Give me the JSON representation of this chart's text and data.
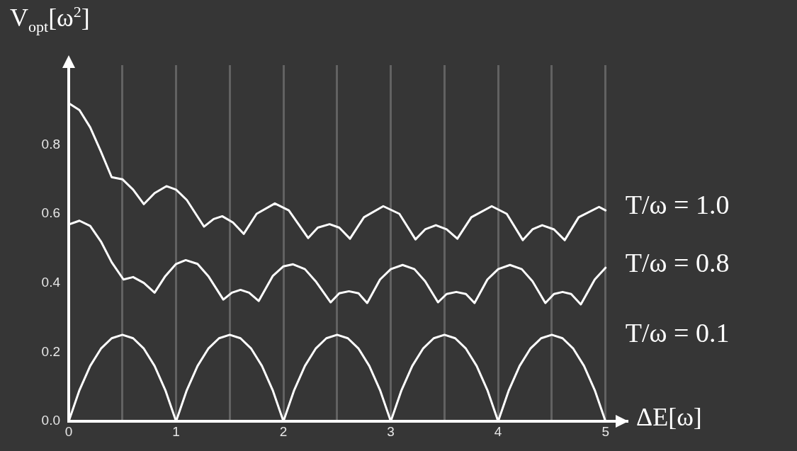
{
  "chart_data": {
    "type": "line",
    "xlabel": "ΔE[ω]",
    "ylabel": "V$_{opt}$[ω$^{2}$]",
    "xlim": [
      0,
      5.2
    ],
    "xticks": [
      0,
      {
        "value": 0.5,
        "label": null
      },
      1,
      {
        "value": 1.5,
        "label": null
      },
      2,
      {
        "value": 2.5,
        "label": null
      },
      3,
      {
        "value": 3.5,
        "label": null
      },
      4,
      {
        "value": 4.5,
        "label": null
      },
      5
    ],
    "ylim": [
      0,
      1.03
    ],
    "yticks": [
      {
        "value": 0,
        "label": "0.0"
      },
      {
        "value": 0.2,
        "label": "0.2"
      },
      {
        "value": 0.4,
        "label": "0.4"
      },
      {
        "value": 0.6,
        "label": "0.6"
      },
      {
        "value": 0.8,
        "label": "0.8"
      }
    ],
    "grid": "x",
    "legend": false,
    "marker": "none",
    "line_style": "solid",
    "series": [
      {
        "name": "T/ω = 1.0",
        "color": "#ffffff",
        "x": [
          0,
          0.1,
          0.2,
          0.3,
          0.4,
          0.5,
          0.6,
          0.7,
          0.8,
          0.91,
          1.0,
          1.1,
          1.26,
          1.35,
          1.43,
          1.53,
          1.63,
          1.75,
          1.92,
          2.05,
          2.23,
          2.32,
          2.43,
          2.52,
          2.62,
          2.75,
          2.93,
          3.08,
          3.23,
          3.32,
          3.42,
          3.52,
          3.62,
          3.75,
          3.94,
          4.08,
          4.23,
          4.32,
          4.41,
          4.52,
          4.62,
          4.75,
          4.94,
          5
        ],
        "values": [
          0.92,
          0.9,
          0.85,
          0.78,
          0.706,
          0.7,
          0.67,
          0.628,
          0.66,
          0.68,
          0.67,
          0.64,
          0.563,
          0.585,
          0.593,
          0.575,
          0.542,
          0.6,
          0.63,
          0.61,
          0.53,
          0.56,
          0.57,
          0.56,
          0.528,
          0.59,
          0.622,
          0.6,
          0.526,
          0.555,
          0.567,
          0.555,
          0.528,
          0.59,
          0.622,
          0.6,
          0.524,
          0.555,
          0.567,
          0.555,
          0.524,
          0.59,
          0.62,
          0.61
        ]
      },
      {
        "name": "T/ω = 0.8",
        "color": "#ffffff",
        "x": [
          0,
          0.1,
          0.2,
          0.3,
          0.4,
          0.51,
          0.6,
          0.7,
          0.8,
          0.9,
          1.0,
          1.09,
          1.2,
          1.3,
          1.44,
          1.52,
          1.6,
          1.68,
          1.77,
          1.9,
          2.0,
          2.09,
          2.2,
          2.3,
          2.44,
          2.52,
          2.61,
          2.7,
          2.78,
          2.9,
          3.0,
          3.11,
          3.22,
          3.32,
          3.44,
          3.52,
          3.61,
          3.7,
          3.78,
          3.9,
          4.0,
          4.11,
          4.22,
          4.32,
          4.44,
          4.52,
          4.6,
          4.68,
          4.77,
          4.9,
          5
        ],
        "values": [
          0.569,
          0.58,
          0.565,
          0.52,
          0.46,
          0.41,
          0.417,
          0.4,
          0.372,
          0.42,
          0.455,
          0.466,
          0.455,
          0.42,
          0.352,
          0.372,
          0.38,
          0.372,
          0.348,
          0.42,
          0.448,
          0.454,
          0.44,
          0.405,
          0.344,
          0.37,
          0.376,
          0.37,
          0.342,
          0.41,
          0.44,
          0.452,
          0.44,
          0.405,
          0.344,
          0.368,
          0.374,
          0.368,
          0.342,
          0.41,
          0.44,
          0.452,
          0.44,
          0.405,
          0.342,
          0.368,
          0.374,
          0.368,
          0.338,
          0.41,
          0.444
        ]
      },
      {
        "name": "T/ω = 0.1",
        "color": "#ffffff",
        "x": [
          0,
          0.1,
          0.2,
          0.3,
          0.4,
          0.5,
          0.6,
          0.7,
          0.8,
          0.9,
          1,
          1.1,
          1.2,
          1.3,
          1.4,
          1.5,
          1.6,
          1.7,
          1.8,
          1.9,
          2,
          2.1,
          2.2,
          2.3,
          2.4,
          2.5,
          2.6,
          2.7,
          2.8,
          2.9,
          3,
          3.1,
          3.2,
          3.3,
          3.4,
          3.5,
          3.6,
          3.7,
          3.8,
          3.9,
          4,
          4.1,
          4.2,
          4.3,
          4.4,
          4.5,
          4.6,
          4.7,
          4.8,
          4.9,
          5
        ],
        "values": [
          0,
          0.09,
          0.16,
          0.21,
          0.24,
          0.25,
          0.24,
          0.21,
          0.16,
          0.09,
          0,
          0.09,
          0.16,
          0.21,
          0.24,
          0.25,
          0.24,
          0.21,
          0.16,
          0.09,
          0,
          0.09,
          0.16,
          0.21,
          0.24,
          0.25,
          0.24,
          0.21,
          0.16,
          0.09,
          0,
          0.09,
          0.16,
          0.21,
          0.24,
          0.25,
          0.24,
          0.21,
          0.16,
          0.09,
          0,
          0.09,
          0.16,
          0.21,
          0.24,
          0.25,
          0.24,
          0.21,
          0.16,
          0.09,
          0
        ]
      }
    ]
  }
}
